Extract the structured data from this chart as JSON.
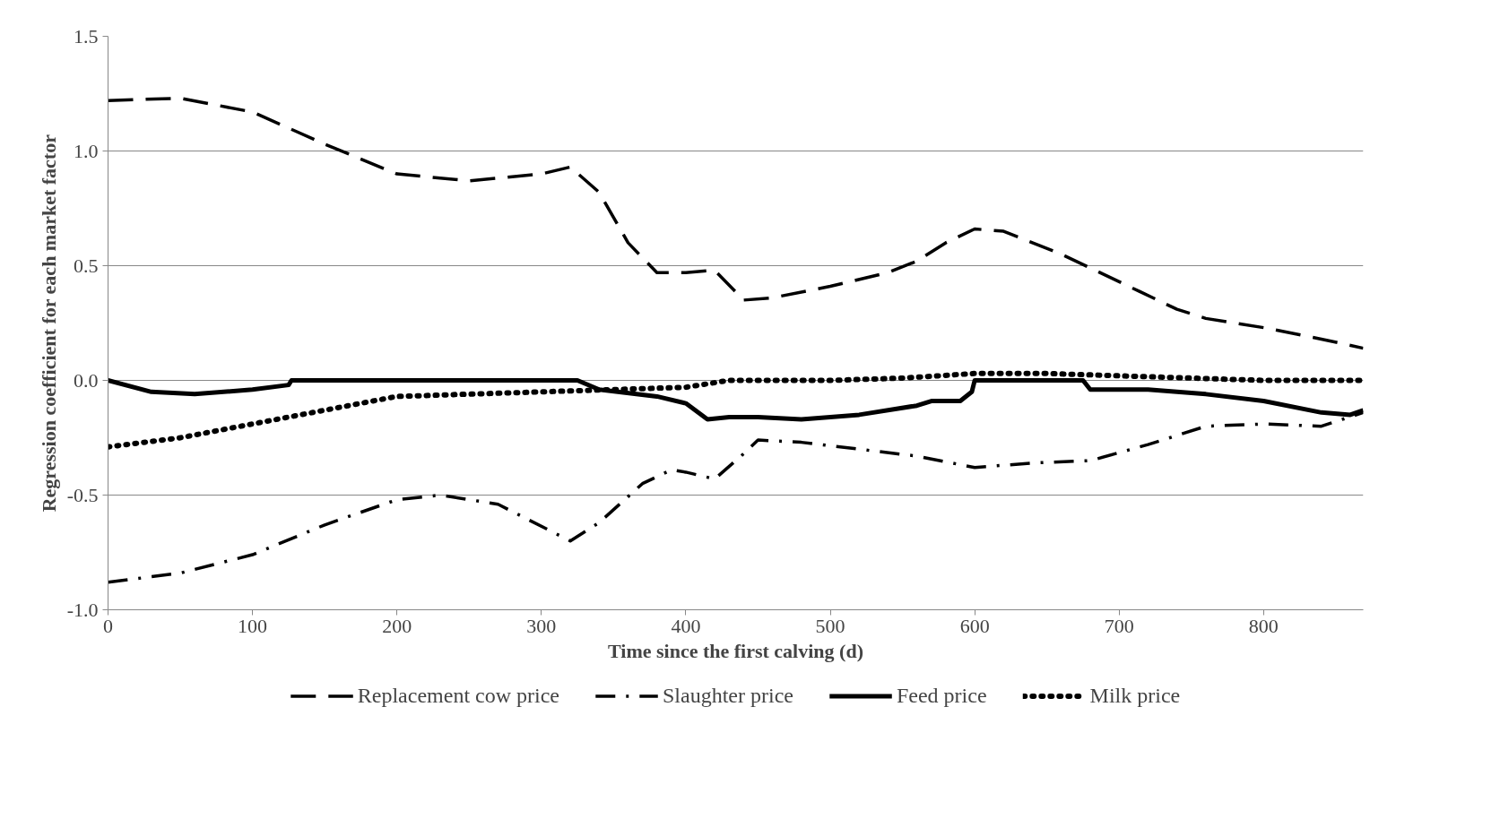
{
  "chart_data": {
    "type": "line",
    "xlabel": "Time since the first calving (d)",
    "ylabel": "Regression coefficient for each market factor",
    "xlim": [
      0,
      869
    ],
    "ylim": [
      -1.0,
      1.5
    ],
    "xticks": [
      0,
      100,
      200,
      300,
      400,
      500,
      600,
      700,
      800
    ],
    "yticks": [
      {
        "value": 1.5,
        "label": "1.5"
      },
      {
        "value": 1.0,
        "label": "1.0"
      },
      {
        "value": 0.5,
        "label": "0.5"
      },
      {
        "value": 0.0,
        "label": "0.0"
      },
      {
        "value": -0.5,
        "label": "-0.5"
      },
      {
        "value": -1.0,
        "label": "-1.0"
      }
    ],
    "grid": "y",
    "legend": "bottom",
    "series": [
      {
        "name": "Replacement cow price",
        "color": "#000000",
        "line_style": "longdash",
        "x": [
          0,
          50,
          100,
          150,
          200,
          250,
          300,
          320,
          340,
          360,
          380,
          400,
          420,
          440,
          460,
          500,
          540,
          560,
          580,
          600,
          620,
          660,
          700,
          740,
          760,
          800,
          840,
          869
        ],
        "values": [
          1.22,
          1.23,
          1.17,
          1.03,
          0.9,
          0.87,
          0.9,
          0.93,
          0.82,
          0.6,
          0.47,
          0.47,
          0.48,
          0.35,
          0.36,
          0.41,
          0.47,
          0.52,
          0.6,
          0.66,
          0.65,
          0.55,
          0.43,
          0.31,
          0.27,
          0.23,
          0.18,
          0.14
        ]
      },
      {
        "name": "Slaughter price",
        "color": "#000000",
        "line_style": "dashdot",
        "x": [
          0,
          50,
          100,
          150,
          200,
          230,
          270,
          320,
          340,
          370,
          390,
          400,
          420,
          440,
          450,
          480,
          520,
          560,
          600,
          640,
          680,
          720,
          760,
          800,
          840,
          869
        ],
        "values": [
          -0.88,
          -0.84,
          -0.76,
          -0.63,
          -0.52,
          -0.5,
          -0.54,
          -0.7,
          -0.62,
          -0.45,
          -0.39,
          -0.4,
          -0.43,
          -0.32,
          -0.26,
          -0.27,
          -0.3,
          -0.33,
          -0.38,
          -0.36,
          -0.35,
          -0.28,
          -0.2,
          -0.19,
          -0.2,
          -0.14
        ]
      },
      {
        "name": "Feed price",
        "color": "#000000",
        "line_style": "solid",
        "x": [
          0,
          30,
          60,
          100,
          125,
          127,
          325,
          340,
          380,
          400,
          415,
          430,
          450,
          480,
          520,
          560,
          570,
          590,
          598,
          600,
          675,
          680,
          720,
          760,
          800,
          840,
          860,
          869
        ],
        "values": [
          0,
          -0.05,
          -0.06,
          -0.04,
          -0.02,
          0,
          0,
          -0.04,
          -0.07,
          -0.1,
          -0.17,
          -0.16,
          -0.16,
          -0.17,
          -0.15,
          -0.11,
          -0.09,
          -0.09,
          -0.05,
          0,
          0,
          -0.04,
          -0.04,
          -0.06,
          -0.09,
          -0.14,
          -0.15,
          -0.13
        ]
      },
      {
        "name": "Milk price",
        "color": "#000000",
        "line_style": "dotted",
        "x": [
          0,
          50,
          100,
          150,
          200,
          250,
          300,
          350,
          400,
          420,
          430,
          500,
          550,
          600,
          650,
          700,
          750,
          800,
          869
        ],
        "values": [
          -0.29,
          -0.25,
          -0.19,
          -0.13,
          -0.07,
          -0.06,
          -0.05,
          -0.04,
          -0.03,
          -0.01,
          0,
          0,
          0.01,
          0.03,
          0.03,
          0.02,
          0.01,
          0,
          0
        ]
      }
    ]
  }
}
